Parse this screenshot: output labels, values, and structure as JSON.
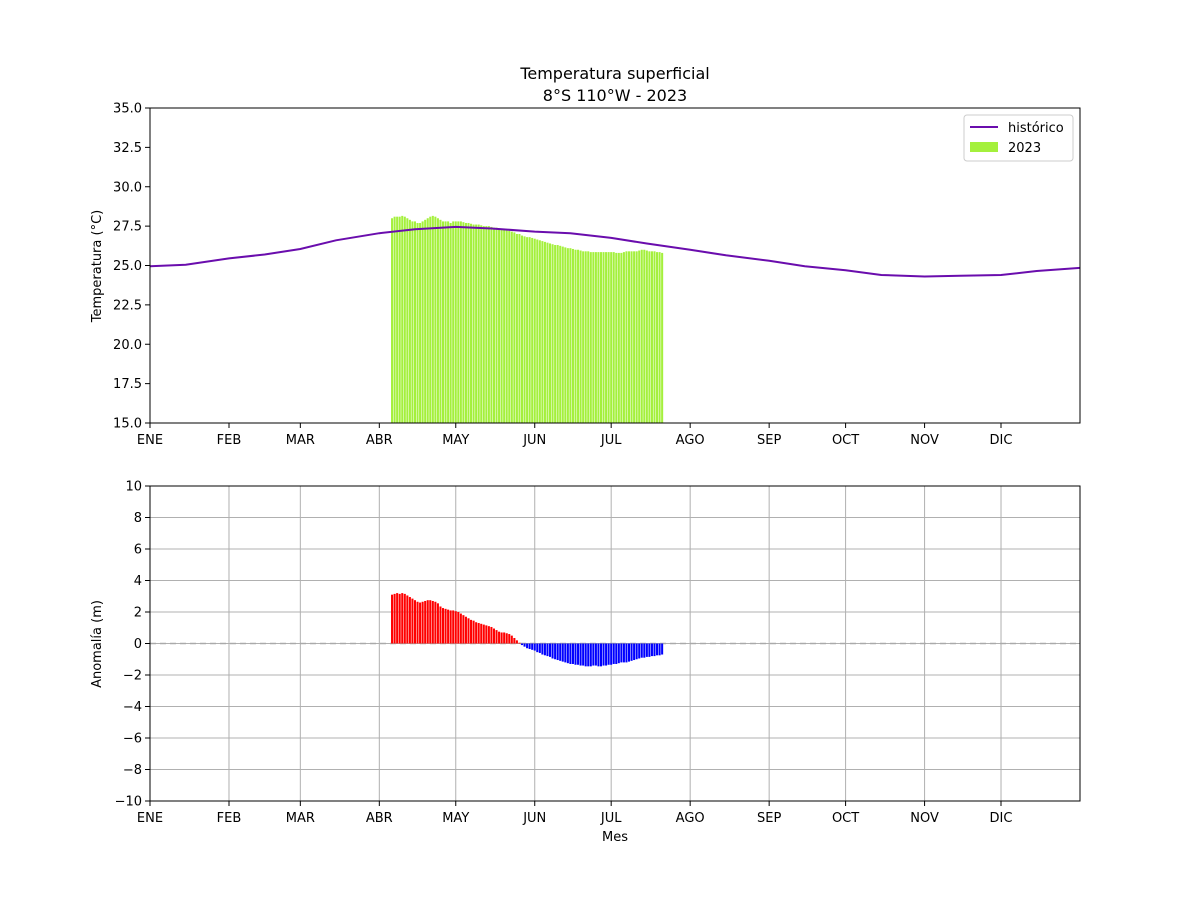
{
  "chart_data": [
    {
      "type": "bar",
      "title": "Temperatura superficial",
      "subtitle": "8°S 110°W - 2023",
      "xlabel": "",
      "ylabel": "Temperatura (°C)",
      "ylim": [
        15.0,
        35.0
      ],
      "xlim_day": [
        1,
        366
      ],
      "yticks": [
        15.0,
        17.5,
        20.0,
        22.5,
        25.0,
        27.5,
        30.0,
        32.5,
        35.0
      ],
      "ytick_labels": [
        "15.0",
        "17.5",
        "20.0",
        "22.5",
        "25.0",
        "27.5",
        "30.0",
        "32.5",
        "35.0"
      ],
      "month_labels": [
        "ENE",
        "FEB",
        "MAR",
        "ABR",
        "MAY",
        "JUN",
        "JUL",
        "AGO",
        "SEP",
        "OCT",
        "NOV",
        "DIC"
      ],
      "grid": false,
      "legend_position": "top-right",
      "legend": [
        {
          "label": "histórico",
          "kind": "line",
          "color": "#6a0dad"
        },
        {
          "label": "2023",
          "kind": "bar",
          "color": "#a4f03c"
        }
      ],
      "series": [
        {
          "name": "histórico",
          "kind": "line",
          "color": "#6a0dad",
          "x_day": [
            1,
            15,
            32,
            46,
            60,
            74,
            91,
            105,
            121,
            135,
            152,
            166,
            182,
            196,
            213,
            227,
            244,
            258,
            274,
            288,
            305,
            319,
            335,
            349,
            366
          ],
          "values": [
            24.95,
            25.05,
            25.45,
            25.7,
            26.05,
            26.6,
            27.05,
            27.3,
            27.45,
            27.35,
            27.15,
            27.05,
            26.75,
            26.4,
            26.0,
            25.65,
            25.3,
            24.95,
            24.7,
            24.4,
            24.3,
            24.35,
            24.4,
            24.65,
            24.85
          ]
        },
        {
          "name": "2023",
          "kind": "bar",
          "color": "#a4f03c",
          "x_start_day": 96,
          "values": [
            28.0,
            28.1,
            28.1,
            28.1,
            28.15,
            28.1,
            28.0,
            27.9,
            27.8,
            27.8,
            27.7,
            27.7,
            27.8,
            27.9,
            28.0,
            28.1,
            28.15,
            28.1,
            28.0,
            27.9,
            27.8,
            27.8,
            27.8,
            27.7,
            27.8,
            27.8,
            27.8,
            27.8,
            27.75,
            27.7,
            27.7,
            27.65,
            27.6,
            27.6,
            27.6,
            27.55,
            27.5,
            27.5,
            27.5,
            27.45,
            27.4,
            27.4,
            27.35,
            27.3,
            27.3,
            27.25,
            27.2,
            27.15,
            27.1,
            27.0,
            27.0,
            26.9,
            26.85,
            26.8,
            26.8,
            26.75,
            26.7,
            26.65,
            26.6,
            26.55,
            26.5,
            26.45,
            26.4,
            26.35,
            26.3,
            26.3,
            26.25,
            26.2,
            26.15,
            26.1,
            26.1,
            26.05,
            26.0,
            26.0,
            25.95,
            25.9,
            25.9,
            25.9,
            25.85,
            25.85,
            25.85,
            25.85,
            25.85,
            25.85,
            25.85,
            25.85,
            25.85,
            25.85,
            25.8,
            25.8,
            25.8,
            25.85,
            25.9,
            25.9,
            25.9,
            25.9,
            25.9,
            25.95,
            26.0,
            26.0,
            25.95,
            25.9,
            25.9,
            25.9,
            25.85,
            25.85,
            25.8
          ]
        }
      ]
    },
    {
      "type": "bar",
      "title": "",
      "xlabel": "Mes",
      "ylabel": "Anomalía (m)",
      "ylim": [
        -10,
        10
      ],
      "xlim_day": [
        1,
        366
      ],
      "yticks": [
        -10,
        -8,
        -6,
        -4,
        -2,
        0,
        2,
        4,
        6,
        8,
        10
      ],
      "ytick_labels": [
        "−10",
        "−8",
        "−6",
        "−4",
        "−2",
        "0",
        "2",
        "4",
        "6",
        "8",
        "10"
      ],
      "month_labels": [
        "ENE",
        "FEB",
        "MAR",
        "ABR",
        "MAY",
        "JUN",
        "JUL",
        "AGO",
        "SEP",
        "OCT",
        "NOV",
        "DIC"
      ],
      "grid": true,
      "zero_line": "dashed",
      "positive_color": "#ff0000",
      "negative_color": "#0000ff",
      "series": [
        {
          "name": "",
          "kind": "bar",
          "x_start_day": 96,
          "values": [
            3.1,
            3.15,
            3.2,
            3.15,
            3.2,
            3.15,
            3.05,
            2.95,
            2.85,
            2.75,
            2.65,
            2.6,
            2.65,
            2.7,
            2.75,
            2.75,
            2.7,
            2.65,
            2.55,
            2.35,
            2.25,
            2.2,
            2.15,
            2.1,
            2.1,
            2.05,
            2.0,
            1.9,
            1.8,
            1.7,
            1.6,
            1.5,
            1.45,
            1.35,
            1.3,
            1.25,
            1.2,
            1.15,
            1.1,
            1.05,
            0.95,
            0.85,
            0.75,
            0.7,
            0.7,
            0.65,
            0.6,
            0.5,
            0.35,
            0.2,
            0.05,
            -0.1,
            -0.2,
            -0.3,
            -0.35,
            -0.4,
            -0.45,
            -0.55,
            -0.6,
            -0.7,
            -0.75,
            -0.8,
            -0.85,
            -0.95,
            -1.0,
            -1.05,
            -1.1,
            -1.15,
            -1.2,
            -1.25,
            -1.3,
            -1.3,
            -1.35,
            -1.35,
            -1.4,
            -1.4,
            -1.45,
            -1.45,
            -1.45,
            -1.4,
            -1.4,
            -1.45,
            -1.45,
            -1.4,
            -1.4,
            -1.35,
            -1.35,
            -1.3,
            -1.3,
            -1.25,
            -1.2,
            -1.2,
            -1.2,
            -1.15,
            -1.1,
            -1.05,
            -1.0,
            -0.95,
            -0.9,
            -0.9,
            -0.85,
            -0.85,
            -0.8,
            -0.8,
            -0.75,
            -0.75,
            -0.7
          ]
        }
      ]
    }
  ]
}
